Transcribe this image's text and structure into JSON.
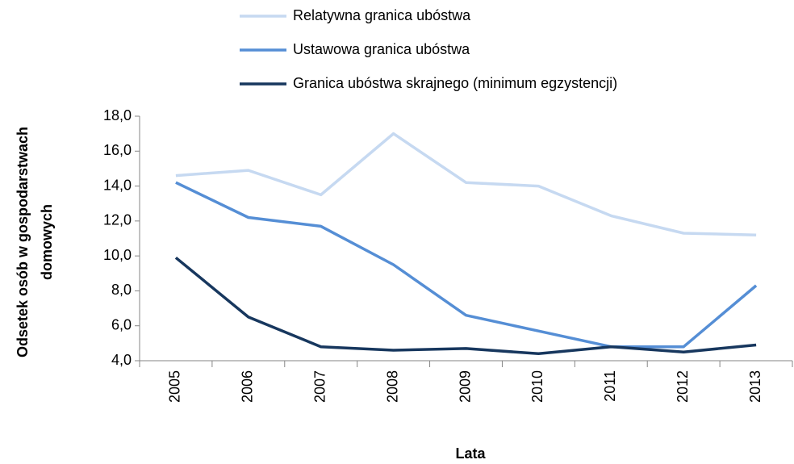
{
  "chart_data": {
    "type": "line",
    "categories": [
      "2005",
      "2006",
      "2007",
      "2008",
      "2009",
      "2010",
      "2011",
      "2012",
      "2013"
    ],
    "series": [
      {
        "name": "Relatywna granica ubóstwa",
        "color": "#c6d9f1",
        "values": [
          14.6,
          14.9,
          13.5,
          17.0,
          14.2,
          14.0,
          12.3,
          11.3,
          11.2
        ]
      },
      {
        "name": "Ustawowa granica ubóstwa",
        "color": "#558ed5",
        "values": [
          14.2,
          12.2,
          11.7,
          9.5,
          6.6,
          5.7,
          4.8,
          4.8,
          8.3
        ]
      },
      {
        "name": "Granica ubóstwa skrajnego (minimum egzystencji)",
        "color": "#17375e",
        "values": [
          9.9,
          6.5,
          4.8,
          4.6,
          4.7,
          4.4,
          4.8,
          4.5,
          4.9
        ]
      }
    ],
    "ylim": [
      4,
      18
    ],
    "yticks": [
      {
        "value": 4,
        "label": "4,0"
      },
      {
        "value": 6,
        "label": "6,0"
      },
      {
        "value": 8,
        "label": "8,0"
      },
      {
        "value": 10,
        "label": "10,0"
      },
      {
        "value": 12,
        "label": "12,0"
      },
      {
        "value": 14,
        "label": "14,0"
      },
      {
        "value": 16,
        "label": "16,0"
      },
      {
        "value": 18,
        "label": "18,0"
      }
    ],
    "ylabel": "Odsetek osób w gospodarstwach domowych",
    "xlabel": "Lata",
    "grid": false
  }
}
